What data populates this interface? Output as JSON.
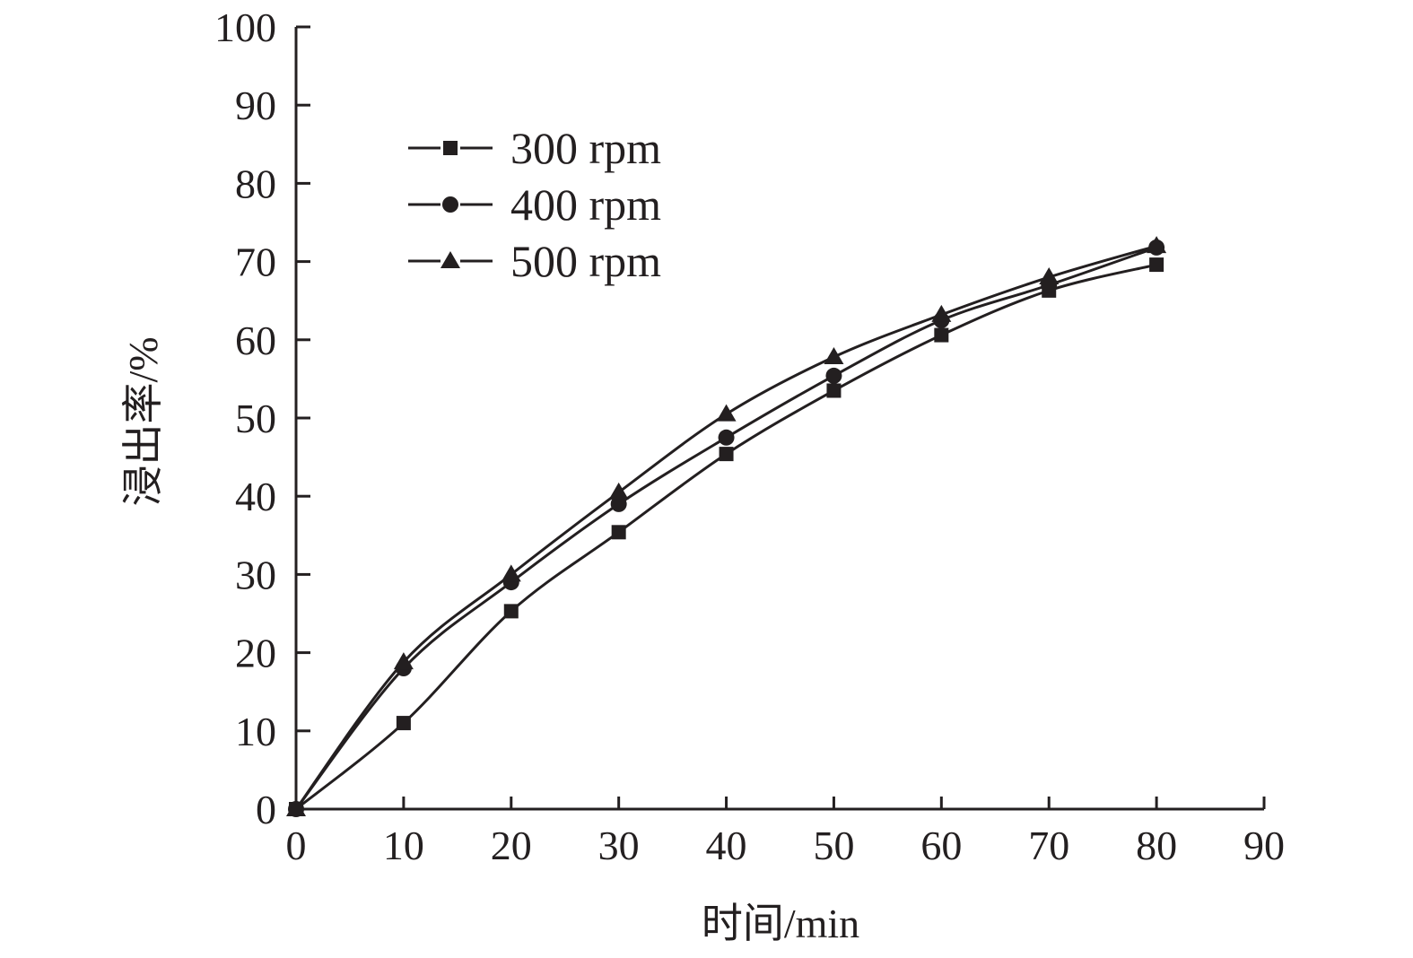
{
  "chart_data": {
    "type": "line",
    "xlabel": "时间/min",
    "ylabel": "浸出率/%",
    "xlim": [
      0,
      90
    ],
    "ylim": [
      0,
      100
    ],
    "xticks": [
      0,
      10,
      20,
      30,
      40,
      50,
      60,
      70,
      80,
      90
    ],
    "yticks": [
      0,
      10,
      20,
      30,
      40,
      50,
      60,
      70,
      80,
      90,
      100
    ],
    "grid": false,
    "legend_position": "top-left",
    "x": [
      0,
      10,
      20,
      30,
      40,
      50,
      60,
      70,
      80
    ],
    "series": [
      {
        "name": "300 rpm",
        "marker": "square",
        "values": [
          0,
          11.0,
          25.3,
          35.4,
          45.4,
          53.5,
          60.6,
          66.3,
          69.6
        ]
      },
      {
        "name": "400 rpm",
        "marker": "circle",
        "values": [
          0,
          18.0,
          29.0,
          39.0,
          47.5,
          55.4,
          62.5,
          67.0,
          71.8
        ]
      },
      {
        "name": "500 rpm",
        "marker": "triangle",
        "values": [
          0,
          18.8,
          30.0,
          40.5,
          50.5,
          57.8,
          63.2,
          68.0,
          72.0
        ]
      }
    ]
  }
}
